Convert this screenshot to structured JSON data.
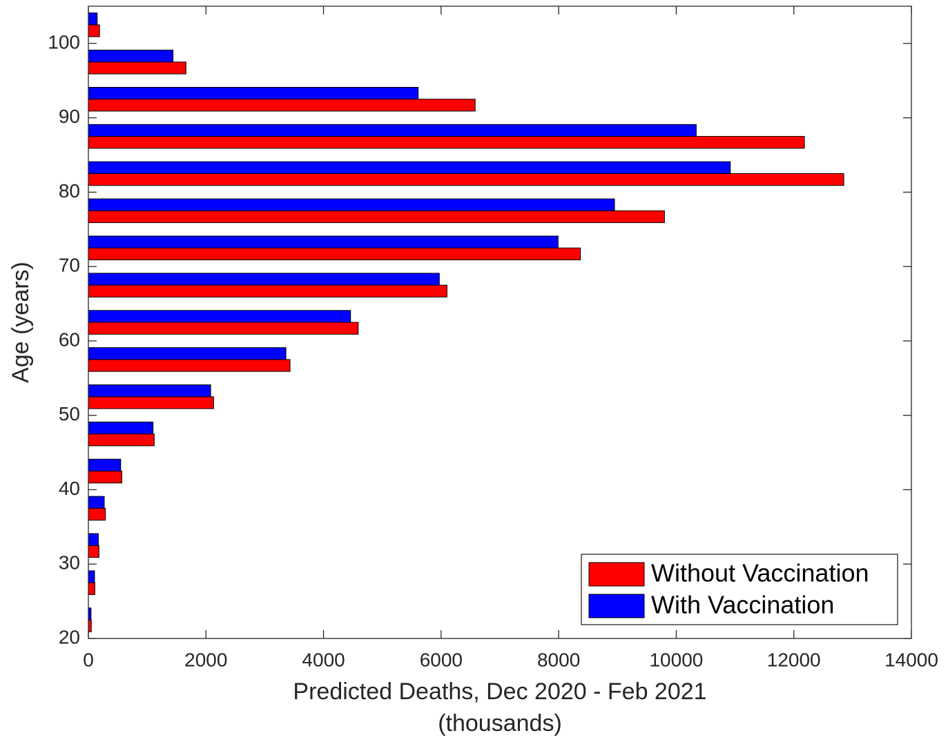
{
  "chart_data": {
    "type": "barh",
    "xlabel": [
      "Predicted Deaths, Dec 2020 - Feb 2021",
      "(thousands)"
    ],
    "ylabel": "Age (years)",
    "y": [
      22.5,
      27.5,
      32.5,
      37.5,
      42.5,
      47.5,
      52.5,
      57.5,
      62.5,
      67.5,
      72.5,
      77.5,
      82.5,
      87.5,
      92.5,
      97.5,
      102.5
    ],
    "series": [
      {
        "name": "Without Vaccination",
        "color": "#ff0000",
        "values": [
          50,
          110,
          180,
          290,
          570,
          1120,
          2130,
          3430,
          4590,
          6100,
          8370,
          9800,
          12850,
          12180,
          6580,
          1660,
          190
        ]
      },
      {
        "name": "With Vaccination",
        "color": "#0000ff",
        "values": [
          45,
          105,
          170,
          270,
          550,
          1100,
          2080,
          3360,
          4460,
          5970,
          7990,
          8950,
          10920,
          10340,
          5610,
          1440,
          150
        ]
      }
    ],
    "xlim": [
      0,
      14000
    ],
    "xticks": [
      0,
      2000,
      4000,
      6000,
      8000,
      10000,
      12000,
      14000
    ],
    "ylim": [
      20,
      105
    ],
    "yticks": [
      20,
      30,
      40,
      50,
      60,
      70,
      80,
      90,
      100
    ],
    "legend": "lower right"
  }
}
